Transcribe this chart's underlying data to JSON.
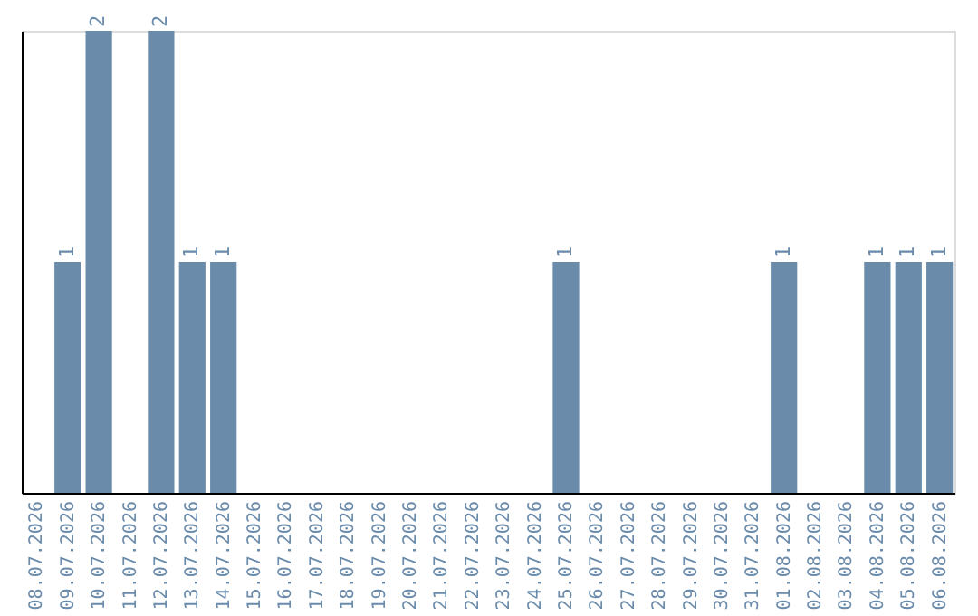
{
  "chart_data": {
    "type": "bar",
    "categories": [
      "08.07.2026",
      "09.07.2026",
      "10.07.2026",
      "11.07.2026",
      "12.07.2026",
      "13.07.2026",
      "14.07.2026",
      "15.07.2026",
      "16.07.2026",
      "17.07.2026",
      "18.07.2026",
      "19.07.2026",
      "20.07.2026",
      "21.07.2026",
      "22.07.2026",
      "23.07.2026",
      "24.07.2026",
      "25.07.2026",
      "26.07.2026",
      "27.07.2026",
      "28.07.2026",
      "29.07.2026",
      "30.07.2026",
      "31.07.2026",
      "01.08.2026",
      "02.08.2026",
      "03.08.2026",
      "04.08.2026",
      "05.08.2026",
      "06.08.2026"
    ],
    "values": [
      0,
      1,
      2,
      0,
      2,
      1,
      1,
      0,
      0,
      0,
      0,
      0,
      0,
      0,
      0,
      0,
      0,
      1,
      0,
      0,
      0,
      0,
      0,
      0,
      1,
      0,
      0,
      1,
      1,
      1
    ],
    "value_labels": [
      null,
      "1",
      "2",
      null,
      "2",
      "1",
      "1",
      null,
      null,
      null,
      null,
      null,
      null,
      null,
      null,
      null,
      null,
      "1",
      null,
      null,
      null,
      null,
      null,
      null,
      "1",
      null,
      null,
      "1",
      "1",
      "1"
    ],
    "color": "#6a8caa",
    "ylim": [
      0,
      2
    ],
    "tick_labels": "x",
    "grid": false
  }
}
